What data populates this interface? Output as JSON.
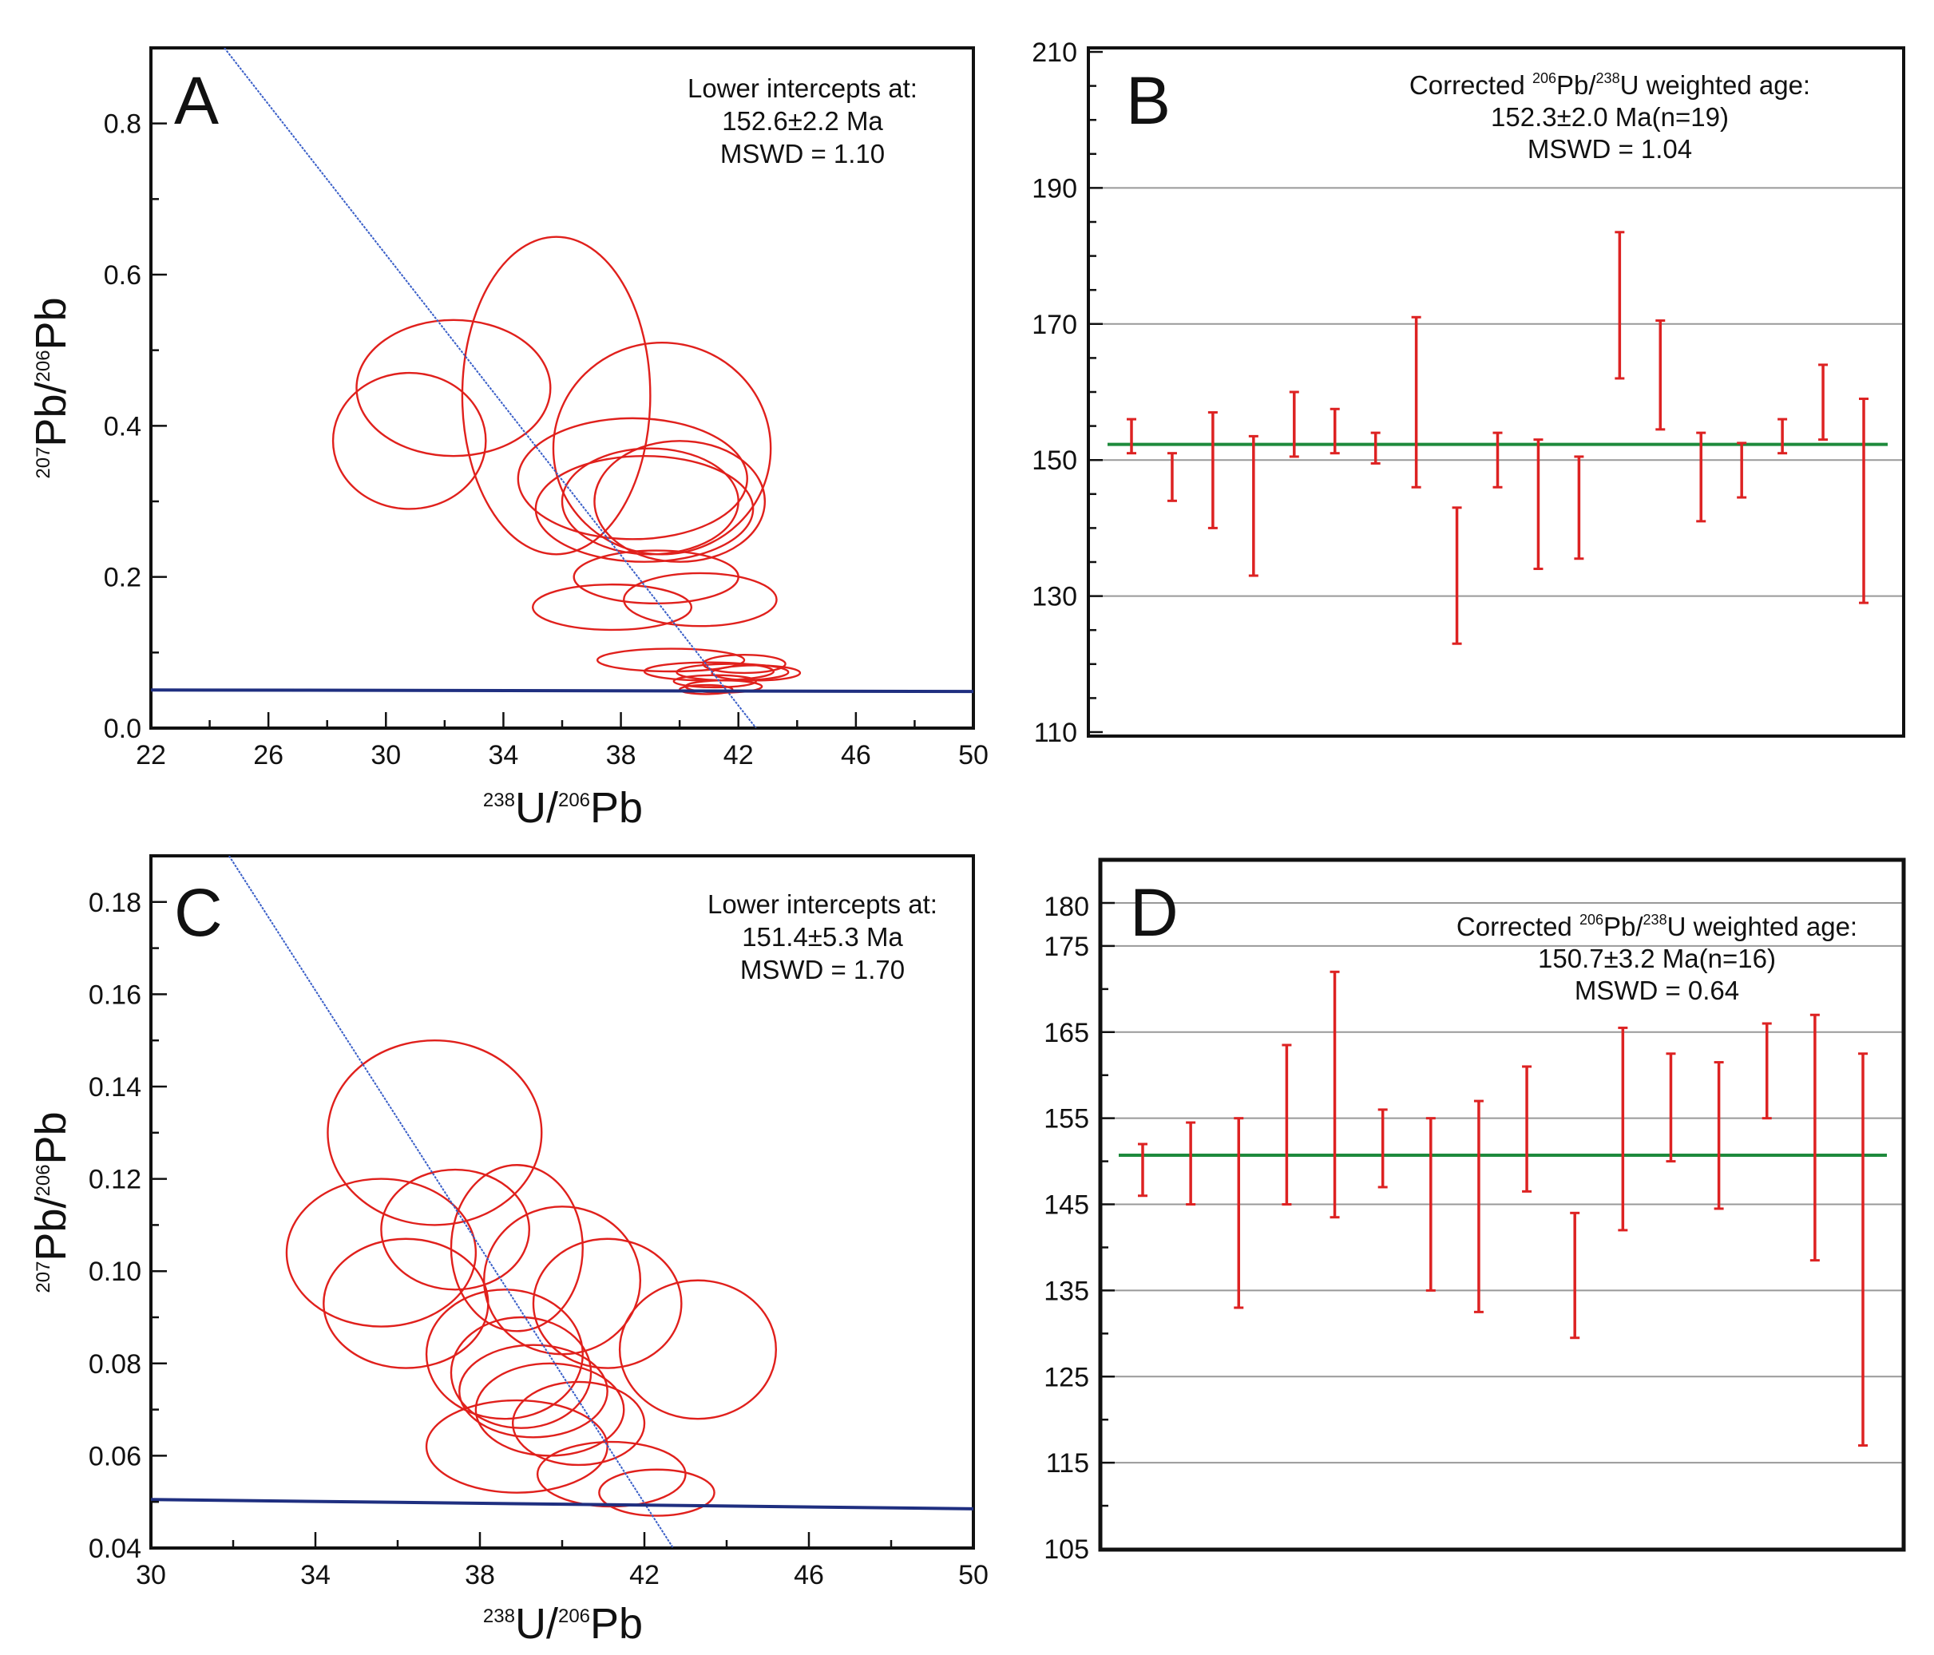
{
  "chart_data": [
    {
      "panel": "A",
      "type": "scatter",
      "subtype": "Tera-Wasserburg concordia with error ellipses",
      "xlabel": {
        "sup": "238",
        "main": "U/",
        "sup2": "206",
        "tail": "Pb"
      },
      "ylabel": {
        "sup": "207",
        "main": "Pb/",
        "sup2": "206",
        "tail": "Pb"
      },
      "xlim": [
        22,
        50
      ],
      "ylim": [
        0,
        0.9
      ],
      "xticks": [
        "22",
        "26",
        "30",
        "34",
        "38",
        "42",
        "46",
        "50"
      ],
      "yticks": [
        "0.0",
        "0.2",
        "0.4",
        "0.6",
        "0.8"
      ],
      "annotation": [
        "Lower intercepts at:",
        "152.6±2.2 Ma",
        "MSWD = 1.10"
      ],
      "concordia": [
        [
          22,
          0.0505
        ],
        [
          50,
          0.0485
        ]
      ],
      "discordia": [
        [
          24.5,
          0.9
        ],
        [
          42.6,
          0.0
        ]
      ],
      "ellipses": [
        {
          "x": 32.3,
          "y": 0.45,
          "rx": 3.3,
          "ry": 0.09
        },
        {
          "x": 30.8,
          "y": 0.38,
          "rx": 2.6,
          "ry": 0.09
        },
        {
          "x": 35.8,
          "y": 0.44,
          "rx": 3.2,
          "ry": 0.21
        },
        {
          "x": 39.4,
          "y": 0.37,
          "rx": 3.7,
          "ry": 0.14
        },
        {
          "x": 38.4,
          "y": 0.33,
          "rx": 3.9,
          "ry": 0.08
        },
        {
          "x": 39.0,
          "y": 0.3,
          "rx": 3.0,
          "ry": 0.07
        },
        {
          "x": 38.8,
          "y": 0.29,
          "rx": 3.7,
          "ry": 0.07
        },
        {
          "x": 40.0,
          "y": 0.3,
          "rx": 2.9,
          "ry": 0.08
        },
        {
          "x": 39.2,
          "y": 0.2,
          "rx": 2.8,
          "ry": 0.035
        },
        {
          "x": 37.7,
          "y": 0.16,
          "rx": 2.7,
          "ry": 0.03
        },
        {
          "x": 40.7,
          "y": 0.17,
          "rx": 2.6,
          "ry": 0.035
        },
        {
          "x": 39.7,
          "y": 0.09,
          "rx": 2.5,
          "ry": 0.015
        },
        {
          "x": 41.0,
          "y": 0.075,
          "rx": 2.2,
          "ry": 0.012
        },
        {
          "x": 42.2,
          "y": 0.085,
          "rx": 1.4,
          "ry": 0.012
        },
        {
          "x": 41.8,
          "y": 0.074,
          "rx": 1.9,
          "ry": 0.011
        },
        {
          "x": 42.6,
          "y": 0.073,
          "rx": 1.5,
          "ry": 0.01
        },
        {
          "x": 41.2,
          "y": 0.062,
          "rx": 1.4,
          "ry": 0.008
        },
        {
          "x": 41.5,
          "y": 0.055,
          "rx": 1.3,
          "ry": 0.008
        },
        {
          "x": 40.9,
          "y": 0.051,
          "rx": 0.9,
          "ry": 0.006
        }
      ]
    },
    {
      "panel": "B",
      "type": "bar",
      "subtype": "weighted mean age error bars",
      "ylim": [
        110,
        210
      ],
      "yticks": [
        "110",
        "130",
        "150",
        "170",
        "190",
        "210"
      ],
      "annotation": {
        "prefix": "Corrected ",
        "sup1": "206",
        "mid": "Pb/",
        "sup2": "238",
        "suffix": "U weighted age:",
        "age": "152.3±2.0 Ma(n=19)",
        "mswd": "MSWD = 1.04"
      },
      "mean": 152.3,
      "bars": [
        [
          151,
          156
        ],
        [
          144,
          151
        ],
        [
          140,
          157
        ],
        [
          133,
          153.5
        ],
        [
          150.5,
          160
        ],
        [
          151,
          157.5
        ],
        [
          149.5,
          154
        ],
        [
          146,
          171
        ],
        [
          123,
          143
        ],
        [
          146,
          154
        ],
        [
          134,
          153
        ],
        [
          135.5,
          150.5
        ],
        [
          162,
          183.5
        ],
        [
          154.5,
          170.5
        ],
        [
          141,
          154
        ],
        [
          144.5,
          152.5
        ],
        [
          151,
          156
        ],
        [
          153,
          164
        ],
        [
          129,
          159
        ]
      ]
    },
    {
      "panel": "C",
      "type": "scatter",
      "subtype": "Tera-Wasserburg concordia with error ellipses",
      "xlabel": {
        "sup": "238",
        "main": "U/",
        "sup2": "206",
        "tail": "Pb"
      },
      "ylabel": {
        "sup": "207",
        "main": "Pb/",
        "sup2": "206",
        "tail": "Pb"
      },
      "xlim": [
        30,
        50
      ],
      "ylim": [
        0.04,
        0.19
      ],
      "xticks": [
        "30",
        "34",
        "38",
        "42",
        "46",
        "50"
      ],
      "yticks": [
        "0.04",
        "0.06",
        "0.08",
        "0.10",
        "0.12",
        "0.14",
        "0.16",
        "0.18"
      ],
      "annotation": [
        "Lower intercepts at:",
        "151.4±5.3 Ma",
        "MSWD = 1.70"
      ],
      "concordia": [
        [
          30,
          0.0505
        ],
        [
          50,
          0.0485
        ]
      ],
      "discordia": [
        [
          31.9,
          0.19
        ],
        [
          42.7,
          0.04
        ]
      ],
      "ellipses": [
        {
          "x": 36.9,
          "y": 0.13,
          "rx": 2.6,
          "ry": 0.02
        },
        {
          "x": 35.6,
          "y": 0.104,
          "rx": 2.3,
          "ry": 0.016
        },
        {
          "x": 37.4,
          "y": 0.109,
          "rx": 1.8,
          "ry": 0.013
        },
        {
          "x": 38.9,
          "y": 0.105,
          "rx": 1.6,
          "ry": 0.018
        },
        {
          "x": 40.0,
          "y": 0.098,
          "rx": 1.9,
          "ry": 0.016
        },
        {
          "x": 36.2,
          "y": 0.093,
          "rx": 2.0,
          "ry": 0.014
        },
        {
          "x": 41.1,
          "y": 0.093,
          "rx": 1.8,
          "ry": 0.014
        },
        {
          "x": 43.3,
          "y": 0.083,
          "rx": 1.9,
          "ry": 0.015
        },
        {
          "x": 38.6,
          "y": 0.082,
          "rx": 1.9,
          "ry": 0.014
        },
        {
          "x": 39.0,
          "y": 0.078,
          "rx": 1.7,
          "ry": 0.012
        },
        {
          "x": 39.3,
          "y": 0.074,
          "rx": 1.8,
          "ry": 0.01
        },
        {
          "x": 39.7,
          "y": 0.07,
          "rx": 1.8,
          "ry": 0.01
        },
        {
          "x": 40.4,
          "y": 0.067,
          "rx": 1.6,
          "ry": 0.009
        },
        {
          "x": 38.9,
          "y": 0.062,
          "rx": 2.2,
          "ry": 0.01
        },
        {
          "x": 41.2,
          "y": 0.056,
          "rx": 1.8,
          "ry": 0.007
        },
        {
          "x": 42.3,
          "y": 0.052,
          "rx": 1.4,
          "ry": 0.005
        }
      ]
    },
    {
      "panel": "D",
      "type": "bar",
      "subtype": "weighted mean age error bars",
      "ylim": [
        105,
        185
      ],
      "yticks": [
        "105",
        "115",
        "125",
        "135",
        "145",
        "155",
        "165",
        "175",
        "180"
      ],
      "annotation": {
        "prefix": "Corrected ",
        "sup1": "206",
        "mid": "Pb/",
        "sup2": "238",
        "suffix": "U weighted age:",
        "age": "150.7±3.2 Ma(n=16)",
        "mswd": "MSWD = 0.64"
      },
      "mean": 150.7,
      "bars": [
        [
          146,
          152
        ],
        [
          145,
          154.5
        ],
        [
          133,
          155
        ],
        [
          145,
          163.5
        ],
        [
          143.5,
          172
        ],
        [
          147,
          156
        ],
        [
          135,
          155
        ],
        [
          132.5,
          157
        ],
        [
          146.5,
          161
        ],
        [
          129.5,
          144
        ],
        [
          142,
          165.5
        ],
        [
          150,
          162.5
        ],
        [
          144.5,
          161.5
        ],
        [
          155,
          166
        ],
        [
          138.5,
          167
        ],
        [
          117,
          162.5
        ]
      ]
    }
  ]
}
